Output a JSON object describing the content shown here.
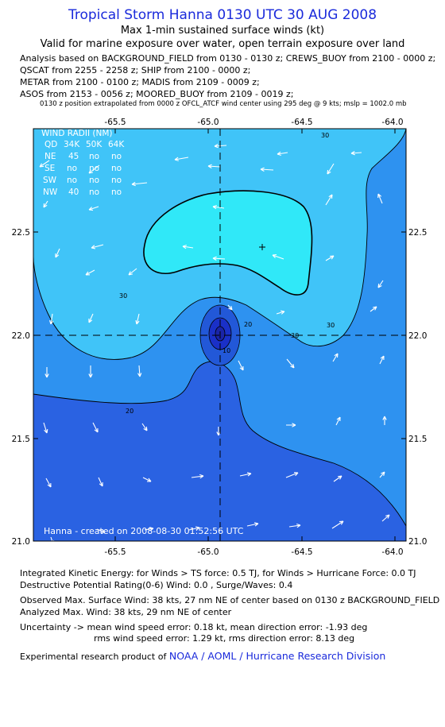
{
  "header": {
    "title": "Tropical Storm Hanna 0130 UTC 30 AUG 2008",
    "subtitle1": "Max 1-min sustained surface winds (kt)",
    "subtitle2": "Valid for marine exposure over water, open terrain exposure over land"
  },
  "analysis": {
    "line1": "Analysis based on  BACKGROUND_FIELD from 0130 - 0130 z;  CREWS_BUOY from 2100 - 0000 z;",
    "line2": "QSCAT from 2255 - 2258 z;  SHIP from 2100 - 0000 z;",
    "line3": "METAR from 2100 - 0100 z;  MADIS from 2109 - 0009 z;",
    "line4": "ASOS from 2153 - 0056 z;  MOORED_BUOY from 2109 - 0019 z;",
    "line5": "0130 z position extrapolated from 0000 z OFCL_ATCF wind center using 295 deg @ 9 kts; mslp = 1002.0 mb"
  },
  "map": {
    "lon_ticks": [
      "-65.5",
      "-65.0",
      "-64.5",
      "-64.0"
    ],
    "lat_ticks": [
      "22.5",
      "22.0",
      "21.5",
      "21.0"
    ],
    "contour_labels": [
      "30",
      "30",
      "30",
      "30",
      "20",
      "20",
      "10"
    ],
    "wind_radii": {
      "title": "WIND RADII (NM)",
      "header": [
        "QD",
        "34K",
        "50K",
        "64K"
      ],
      "rows": [
        [
          "NE",
          "45",
          "no",
          "no"
        ],
        [
          "SE",
          "no",
          "no",
          "no"
        ],
        [
          "SW",
          "no",
          "no",
          "no"
        ],
        [
          "NW",
          "40",
          "no",
          "no"
        ]
      ]
    },
    "credit": "Hanna - created on 2008-08-30 01:52:56 UTC",
    "colors": {
      "band_lt10": "#1a30c8",
      "band_10_20": "#2a62e2",
      "band_20_30": "#2e92f0",
      "band_30_34": "#40c4f8",
      "band_gt34": "#30e8f8"
    }
  },
  "footer": {
    "ike": "Integrated Kinetic Energy:  for Winds > TS force: 0.5 TJ,  for Winds > Hurricane Force: 0.0 TJ",
    "dpr": "Destructive Potential Rating(0-6)   Wind: 0.0 , Surge/Waves: 0.4",
    "observed": "Observed Max. Surface Wind: 38 kts, 27 nm NE of center based on 0130 z BACKGROUND_FIELD",
    "analyzed": "Analyzed Max. Wind: 38 kts, 29 nm NE of center",
    "uncertainty1": "Uncertainty -> mean wind speed error: 0.18 kt,   mean direction error:  -1.93 deg",
    "uncertainty2": "rms wind speed error: 1.29 kt,   rms direction error: 8.13 deg",
    "experimental": "Experimental research product of",
    "org": "NOAA / AOML / Hurricane Research Division"
  }
}
